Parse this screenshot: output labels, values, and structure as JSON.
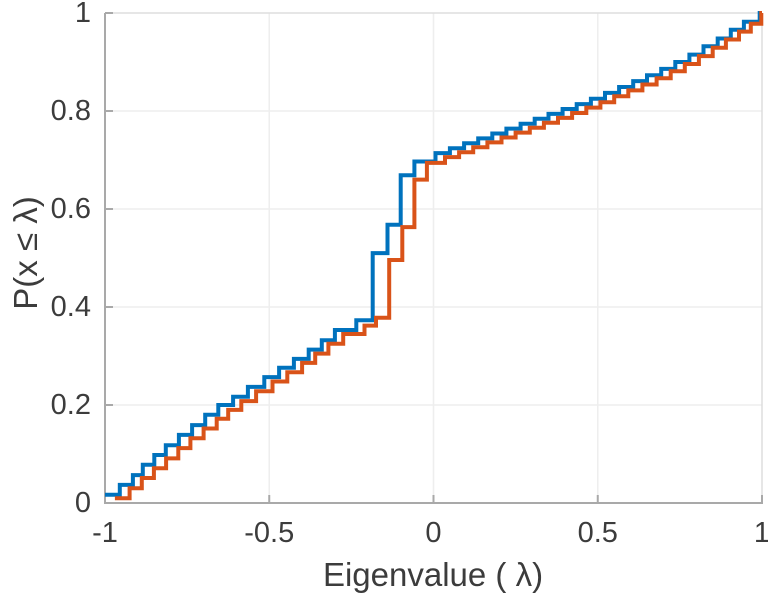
{
  "figure": {
    "background_color": "#ffffff",
    "text_color": "#3c3c3c",
    "axis_color": "#a9a9a9",
    "box_color": "#dddddd",
    "grid_color": "#eeeeee"
  },
  "chart_data": {
    "type": "line",
    "subtype": "ecdf-stairs",
    "title": "",
    "xlabel": "Eigenvalue ( λ)",
    "ylabel": "P(x ≤ λ)",
    "xlim": [
      -1,
      1
    ],
    "ylim": [
      0,
      1
    ],
    "grid": true,
    "legend_position": "none",
    "x_ticks": [
      {
        "value": -1,
        "label": "-1"
      },
      {
        "value": -0.5,
        "label": "-0.5"
      },
      {
        "value": 0,
        "label": "0"
      },
      {
        "value": 0.5,
        "label": "0.5"
      },
      {
        "value": 1,
        "label": "1"
      }
    ],
    "y_ticks": [
      {
        "value": 0,
        "label": "0"
      },
      {
        "value": 0.2,
        "label": "0.2"
      },
      {
        "value": 0.4,
        "label": "0.4"
      },
      {
        "value": 0.6,
        "label": "0.6"
      },
      {
        "value": 0.8,
        "label": "0.8"
      },
      {
        "value": 1,
        "label": "1"
      }
    ],
    "series": [
      {
        "name": "ecdf-blue",
        "color": "#0072BD",
        "step_points": [
          [
            -1.0,
            0.017
          ],
          [
            -0.955,
            0.037
          ],
          [
            -0.915,
            0.057
          ],
          [
            -0.885,
            0.078
          ],
          [
            -0.85,
            0.098
          ],
          [
            -0.815,
            0.118
          ],
          [
            -0.775,
            0.139
          ],
          [
            -0.735,
            0.159
          ],
          [
            -0.695,
            0.18
          ],
          [
            -0.655,
            0.2
          ],
          [
            -0.61,
            0.217
          ],
          [
            -0.565,
            0.237
          ],
          [
            -0.515,
            0.257
          ],
          [
            -0.47,
            0.276
          ],
          [
            -0.425,
            0.294
          ],
          [
            -0.38,
            0.313
          ],
          [
            -0.34,
            0.332
          ],
          [
            -0.3,
            0.353
          ],
          [
            -0.235,
            0.373
          ],
          [
            -0.185,
            0.51
          ],
          [
            -0.14,
            0.568
          ],
          [
            -0.1,
            0.669
          ],
          [
            -0.058,
            0.697
          ],
          [
            0.006,
            0.714
          ],
          [
            0.05,
            0.724
          ],
          [
            0.093,
            0.734
          ],
          [
            0.136,
            0.744
          ],
          [
            0.179,
            0.754
          ],
          [
            0.222,
            0.764
          ],
          [
            0.265,
            0.774
          ],
          [
            0.308,
            0.784
          ],
          [
            0.35,
            0.794
          ],
          [
            0.393,
            0.804
          ],
          [
            0.436,
            0.814
          ],
          [
            0.479,
            0.825
          ],
          [
            0.522,
            0.837
          ],
          [
            0.565,
            0.849
          ],
          [
            0.608,
            0.861
          ],
          [
            0.65,
            0.873
          ],
          [
            0.693,
            0.886
          ],
          [
            0.736,
            0.9
          ],
          [
            0.779,
            0.915
          ],
          [
            0.822,
            0.932
          ],
          [
            0.865,
            0.948
          ],
          [
            0.905,
            0.966
          ],
          [
            0.945,
            0.982
          ],
          [
            0.993,
            1.0
          ]
        ]
      },
      {
        "name": "ecdf-orange",
        "color": "#D95319",
        "step_points": [
          [
            -0.97,
            0.0095
          ],
          [
            -0.925,
            0.03
          ],
          [
            -0.888,
            0.051
          ],
          [
            -0.851,
            0.071
          ],
          [
            -0.814,
            0.091
          ],
          [
            -0.777,
            0.112
          ],
          [
            -0.74,
            0.132
          ],
          [
            -0.7,
            0.152
          ],
          [
            -0.66,
            0.172
          ],
          [
            -0.625,
            0.19
          ],
          [
            -0.585,
            0.208
          ],
          [
            -0.54,
            0.228
          ],
          [
            -0.49,
            0.248
          ],
          [
            -0.445,
            0.267
          ],
          [
            -0.4,
            0.286
          ],
          [
            -0.36,
            0.305
          ],
          [
            -0.32,
            0.325
          ],
          [
            -0.275,
            0.345
          ],
          [
            -0.21,
            0.362
          ],
          [
            -0.175,
            0.378
          ],
          [
            -0.135,
            0.496
          ],
          [
            -0.095,
            0.563
          ],
          [
            -0.058,
            0.66
          ],
          [
            -0.02,
            0.694
          ],
          [
            0.035,
            0.706
          ],
          [
            0.078,
            0.716
          ],
          [
            0.121,
            0.726
          ],
          [
            0.164,
            0.736
          ],
          [
            0.207,
            0.746
          ],
          [
            0.25,
            0.756
          ],
          [
            0.293,
            0.766
          ],
          [
            0.336,
            0.776
          ],
          [
            0.379,
            0.786
          ],
          [
            0.422,
            0.796
          ],
          [
            0.465,
            0.807
          ],
          [
            0.508,
            0.818
          ],
          [
            0.55,
            0.83
          ],
          [
            0.593,
            0.842
          ],
          [
            0.636,
            0.854
          ],
          [
            0.679,
            0.867
          ],
          [
            0.722,
            0.881
          ],
          [
            0.765,
            0.896
          ],
          [
            0.808,
            0.912
          ],
          [
            0.85,
            0.929
          ],
          [
            0.89,
            0.946
          ],
          [
            0.93,
            0.962
          ],
          [
            0.966,
            0.978
          ],
          [
            0.998,
            1.0
          ]
        ]
      }
    ]
  }
}
